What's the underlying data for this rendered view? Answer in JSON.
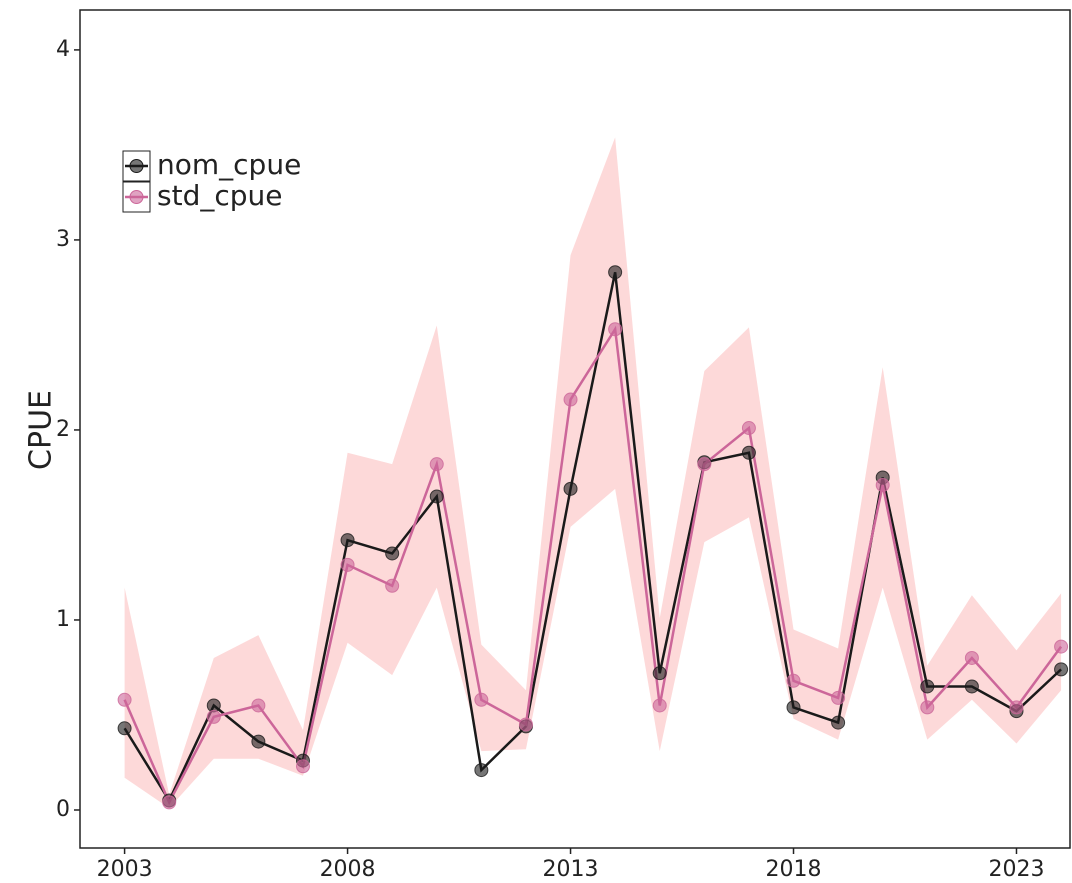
{
  "chart_data": {
    "type": "line",
    "y_label": "CPUE",
    "x": [
      2003,
      2004,
      2005,
      2006,
      2007,
      2008,
      2009,
      2010,
      2011,
      2012,
      2013,
      2014,
      2015,
      2016,
      2017,
      2018,
      2019,
      2020,
      2021,
      2022,
      2023,
      2024
    ],
    "series": [
      {
        "name": "nom_cpue",
        "color": "#1a1a1a",
        "values": [
          0.43,
          0.05,
          0.55,
          0.36,
          0.26,
          1.42,
          1.35,
          1.65,
          0.21,
          0.44,
          1.69,
          2.83,
          0.72,
          1.83,
          1.88,
          0.54,
          0.46,
          1.75,
          0.65,
          0.65,
          0.52,
          0.74
        ]
      },
      {
        "name": "std_cpue",
        "color": "#cc6699",
        "values": [
          0.58,
          0.04,
          0.49,
          0.55,
          0.23,
          1.29,
          1.18,
          1.82,
          0.58,
          0.45,
          2.16,
          2.53,
          0.55,
          1.82,
          2.01,
          0.68,
          0.59,
          1.71,
          0.54,
          0.8,
          0.54,
          0.86
        ]
      }
    ],
    "ribbon": {
      "color": "#fdd9d9",
      "lower": [
        0.17,
        0.01,
        0.27,
        0.27,
        0.18,
        0.88,
        0.71,
        1.17,
        0.31,
        0.32,
        1.49,
        1.69,
        0.31,
        1.41,
        1.54,
        0.48,
        0.37,
        1.17,
        0.37,
        0.58,
        0.35,
        0.63
      ],
      "upper": [
        1.17,
        0.08,
        0.8,
        0.92,
        0.42,
        1.88,
        1.82,
        2.55,
        0.87,
        0.63,
        2.92,
        3.54,
        1.01,
        2.31,
        2.54,
        0.95,
        0.85,
        2.33,
        0.76,
        1.13,
        0.84,
        1.14
      ]
    },
    "xlim": [
      2002.0,
      2024.2
    ],
    "xticks": [
      2003,
      2008,
      2013,
      2018,
      2023
    ],
    "ylim": [
      -0.2,
      4.21
    ],
    "yticks": [
      0,
      1,
      2,
      3,
      4
    ],
    "grid": false,
    "legend": "top-left"
  }
}
